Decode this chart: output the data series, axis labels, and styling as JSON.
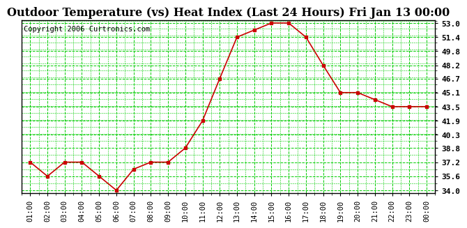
{
  "title": "Outdoor Temperature (vs) Heat Index (Last 24 Hours) Fri Jan 13 00:00",
  "copyright": "Copyright 2006 Curtronics.com",
  "x_labels": [
    "01:00",
    "02:00",
    "03:00",
    "04:00",
    "05:00",
    "06:00",
    "07:00",
    "08:00",
    "09:00",
    "10:00",
    "11:00",
    "12:00",
    "13:00",
    "14:00",
    "15:00",
    "16:00",
    "17:00",
    "18:00",
    "19:00",
    "20:00",
    "21:00",
    "22:00",
    "23:00",
    "00:00"
  ],
  "y_values": [
    37.2,
    35.6,
    37.2,
    37.2,
    35.6,
    34.0,
    36.4,
    37.2,
    37.2,
    38.8,
    41.9,
    46.7,
    51.4,
    52.2,
    53.0,
    53.0,
    51.4,
    48.2,
    45.1,
    45.1,
    44.3,
    43.5,
    43.5,
    43.5
  ],
  "line_color": "#cc0000",
  "marker_color": "#cc0000",
  "bg_color": "#ffffff",
  "grid_color": "#00cc00",
  "title_fontsize": 11.5,
  "copyright_fontsize": 7.5,
  "y_min": 34.0,
  "y_max": 53.0,
  "y_ticks": [
    34.0,
    35.6,
    37.2,
    38.8,
    40.3,
    41.9,
    43.5,
    45.1,
    46.7,
    48.2,
    49.8,
    51.4,
    53.0
  ]
}
